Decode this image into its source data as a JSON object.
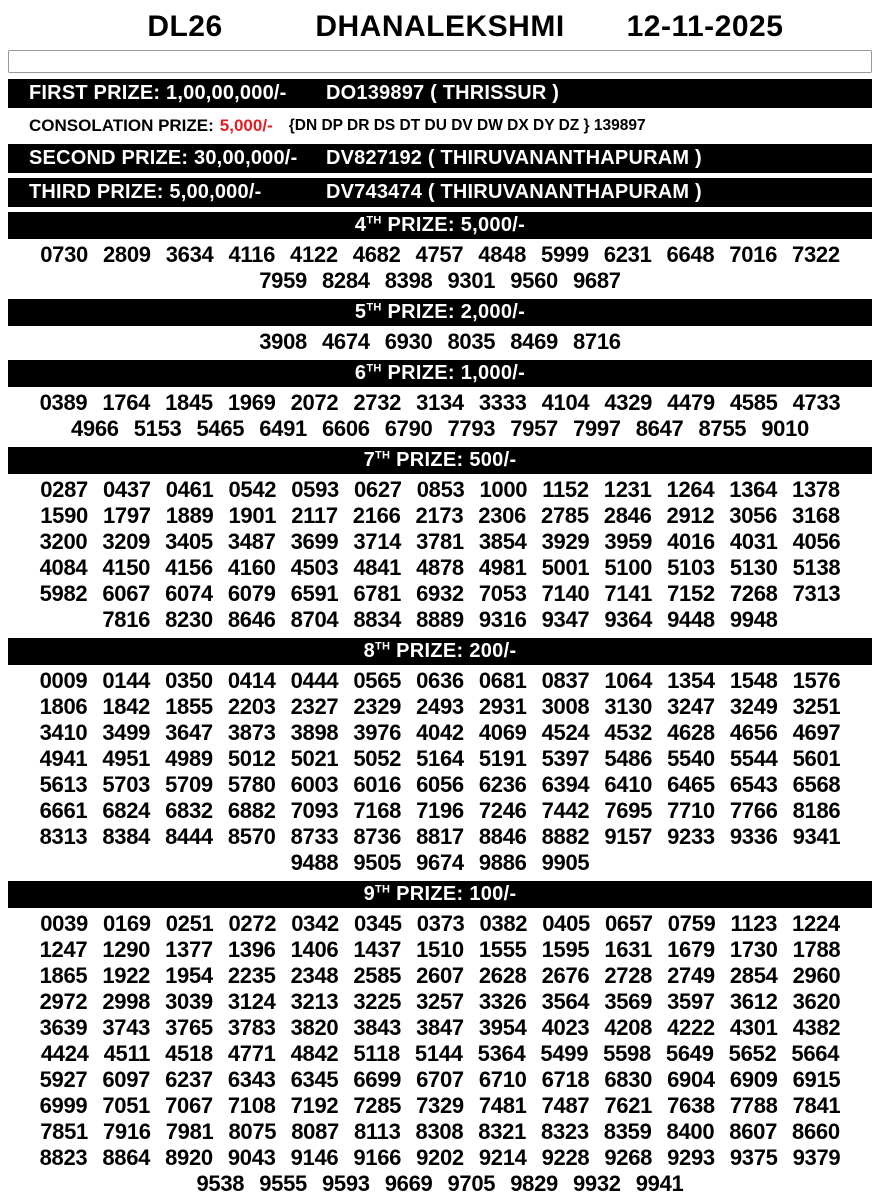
{
  "header": {
    "code": "DL26",
    "title": "DHANALEKSHMI",
    "date": "12-11-2025"
  },
  "search_box": {
    "value": ""
  },
  "main_prizes": [
    {
      "label": "FIRST PRIZE: 1,00,00,000/-",
      "winner": "DO139897 ( THRISSUR )"
    },
    {
      "label": "SECOND PRIZE: 30,00,000/-",
      "winner": "DV827192 ( THIRUVANANTHAPURAM )"
    },
    {
      "label": "THIRD PRIZE: 5,00,000/-",
      "winner": "DV743474 ( THIRUVANANTHAPURAM )"
    }
  ],
  "consolation": {
    "label": "CONSOLATION PRIZE:",
    "amount": "5,000/-",
    "amount_color": "#e21e22",
    "series": "{DN DP DR DS DT DU DV DW DX DY DZ } 139897"
  },
  "number_sections": [
    {
      "rank": "4",
      "ordinal": "TH",
      "title_rest": " PRIZE: 5,000/-",
      "rows": [
        [
          "0730",
          "2809",
          "3634",
          "4116",
          "4122",
          "4682",
          "4757",
          "4848",
          "5999",
          "6231",
          "6648",
          "7016",
          "7322"
        ],
        [
          "7959",
          "8284",
          "8398",
          "9301",
          "9560",
          "9687"
        ]
      ]
    },
    {
      "rank": "5",
      "ordinal": "TH",
      "title_rest": " PRIZE: 2,000/-",
      "rows": [
        [
          "3908",
          "4674",
          "6930",
          "8035",
          "8469",
          "8716"
        ]
      ]
    },
    {
      "rank": "6",
      "ordinal": "TH",
      "title_rest": " PRIZE: 1,000/-",
      "rows": [
        [
          "0389",
          "1764",
          "1845",
          "1969",
          "2072",
          "2732",
          "3134",
          "3333",
          "4104",
          "4329",
          "4479",
          "4585",
          "4733"
        ],
        [
          "4966",
          "5153",
          "5465",
          "6491",
          "6606",
          "6790",
          "7793",
          "7957",
          "7997",
          "8647",
          "8755",
          "9010"
        ]
      ]
    },
    {
      "rank": "7",
      "ordinal": "TH",
      "title_rest": " PRIZE: 500/-",
      "rows": [
        [
          "0287",
          "0437",
          "0461",
          "0542",
          "0593",
          "0627",
          "0853",
          "1000",
          "1152",
          "1231",
          "1264",
          "1364",
          "1378"
        ],
        [
          "1590",
          "1797",
          "1889",
          "1901",
          "2117",
          "2166",
          "2173",
          "2306",
          "2785",
          "2846",
          "2912",
          "3056",
          "3168"
        ],
        [
          "3200",
          "3209",
          "3405",
          "3487",
          "3699",
          "3714",
          "3781",
          "3854",
          "3929",
          "3959",
          "4016",
          "4031",
          "4056"
        ],
        [
          "4084",
          "4150",
          "4156",
          "4160",
          "4503",
          "4841",
          "4878",
          "4981",
          "5001",
          "5100",
          "5103",
          "5130",
          "5138"
        ],
        [
          "5982",
          "6067",
          "6074",
          "6079",
          "6591",
          "6781",
          "6932",
          "7053",
          "7140",
          "7141",
          "7152",
          "7268",
          "7313"
        ],
        [
          "7816",
          "8230",
          "8646",
          "8704",
          "8834",
          "8889",
          "9316",
          "9347",
          "9364",
          "9448",
          "9948"
        ]
      ]
    },
    {
      "rank": "8",
      "ordinal": "TH",
      "title_rest": " PRIZE: 200/-",
      "rows": [
        [
          "0009",
          "0144",
          "0350",
          "0414",
          "0444",
          "0565",
          "0636",
          "0681",
          "0837",
          "1064",
          "1354",
          "1548",
          "1576"
        ],
        [
          "1806",
          "1842",
          "1855",
          "2203",
          "2327",
          "2329",
          "2493",
          "2931",
          "3008",
          "3130",
          "3247",
          "3249",
          "3251"
        ],
        [
          "3410",
          "3499",
          "3647",
          "3873",
          "3898",
          "3976",
          "4042",
          "4069",
          "4524",
          "4532",
          "4628",
          "4656",
          "4697"
        ],
        [
          "4941",
          "4951",
          "4989",
          "5012",
          "5021",
          "5052",
          "5164",
          "5191",
          "5397",
          "5486",
          "5540",
          "5544",
          "5601"
        ],
        [
          "5613",
          "5703",
          "5709",
          "5780",
          "6003",
          "6016",
          "6056",
          "6236",
          "6394",
          "6410",
          "6465",
          "6543",
          "6568"
        ],
        [
          "6661",
          "6824",
          "6832",
          "6882",
          "7093",
          "7168",
          "7196",
          "7246",
          "7442",
          "7695",
          "7710",
          "7766",
          "8186"
        ],
        [
          "8313",
          "8384",
          "8444",
          "8570",
          "8733",
          "8736",
          "8817",
          "8846",
          "8882",
          "9157",
          "9233",
          "9336",
          "9341"
        ],
        [
          "9488",
          "9505",
          "9674",
          "9886",
          "9905"
        ]
      ]
    },
    {
      "rank": "9",
      "ordinal": "TH",
      "title_rest": " PRIZE: 100/-",
      "rows": [
        [
          "0039",
          "0169",
          "0251",
          "0272",
          "0342",
          "0345",
          "0373",
          "0382",
          "0405",
          "0657",
          "0759",
          "1123",
          "1224"
        ],
        [
          "1247",
          "1290",
          "1377",
          "1396",
          "1406",
          "1437",
          "1510",
          "1555",
          "1595",
          "1631",
          "1679",
          "1730",
          "1788"
        ],
        [
          "1865",
          "1922",
          "1954",
          "2235",
          "2348",
          "2585",
          "2607",
          "2628",
          "2676",
          "2728",
          "2749",
          "2854",
          "2960"
        ],
        [
          "2972",
          "2998",
          "3039",
          "3124",
          "3213",
          "3225",
          "3257",
          "3326",
          "3564",
          "3569",
          "3597",
          "3612",
          "3620"
        ],
        [
          "3639",
          "3743",
          "3765",
          "3783",
          "3820",
          "3843",
          "3847",
          "3954",
          "4023",
          "4208",
          "4222",
          "4301",
          "4382"
        ],
        [
          "4424",
          "4511",
          "4518",
          "4771",
          "4842",
          "5118",
          "5144",
          "5364",
          "5499",
          "5598",
          "5649",
          "5652",
          "5664"
        ],
        [
          "5927",
          "6097",
          "6237",
          "6343",
          "6345",
          "6699",
          "6707",
          "6710",
          "6718",
          "6830",
          "6904",
          "6909",
          "6915"
        ],
        [
          "6999",
          "7051",
          "7067",
          "7108",
          "7192",
          "7285",
          "7329",
          "7481",
          "7487",
          "7621",
          "7638",
          "7788",
          "7841"
        ],
        [
          "7851",
          "7916",
          "7981",
          "8075",
          "8087",
          "8113",
          "8308",
          "8321",
          "8323",
          "8359",
          "8400",
          "8607",
          "8660"
        ],
        [
          "8823",
          "8864",
          "8920",
          "9043",
          "9146",
          "9166",
          "9202",
          "9214",
          "9228",
          "9268",
          "9293",
          "9375",
          "9379"
        ],
        [
          "9538",
          "9555",
          "9593",
          "9669",
          "9705",
          "9829",
          "9932",
          "9941"
        ]
      ]
    }
  ]
}
